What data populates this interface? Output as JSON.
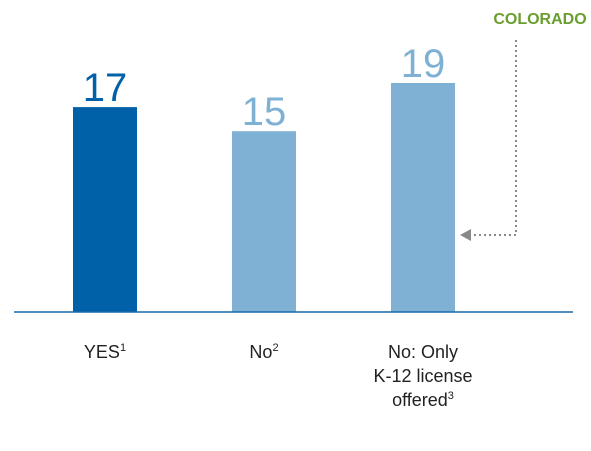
{
  "chart_data": {
    "type": "bar",
    "categories": [
      {
        "label_lines": [
          "YES"
        ],
        "footnote": "1"
      },
      {
        "label_lines": [
          "No"
        ],
        "footnote": "2"
      },
      {
        "label_lines": [
          "No: Only",
          "K-12 license",
          "offered"
        ],
        "footnote": "3"
      }
    ],
    "values": [
      17,
      15,
      19
    ],
    "bar_colors": [
      "#0061a8",
      "#7fb1d5",
      "#7fb1d5"
    ],
    "value_label_colors": [
      "#0061a8",
      "#7fb1d5",
      "#7fb1d5"
    ],
    "ylim": [
      0,
      19
    ],
    "grid": false,
    "annotation": {
      "text": "COLORADO",
      "color": "#6a9e2f",
      "target_category_index": 2,
      "connector": "dotted-arrow"
    },
    "axis_color": "#1a6aa8",
    "label_color": "#222222",
    "connector_color": "#888888"
  }
}
